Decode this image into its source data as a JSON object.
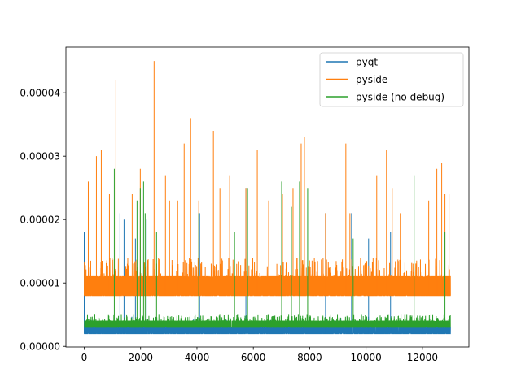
{
  "chart_data": {
    "type": "line",
    "title": "",
    "xlabel": "",
    "ylabel": "",
    "xlim": [
      -650,
      13650
    ],
    "ylim": [
      -1e-07,
      4.72e-05
    ],
    "grid": false,
    "legend_placement": "top-right",
    "xticks": {
      "values": [
        0,
        2000,
        4000,
        6000,
        8000,
        10000,
        12000
      ],
      "labels": [
        "0",
        "2000",
        "4000",
        "6000",
        "8000",
        "10000",
        "12000"
      ]
    },
    "yticks": {
      "values": [
        0,
        1e-05,
        2e-05,
        3e-05,
        4e-05
      ],
      "labels": [
        "0.00000",
        "0.00001",
        "0.00002",
        "0.00003",
        "0.00004"
      ]
    },
    "n_points": 13000,
    "series": [
      {
        "name": "pyqt",
        "color": "#1f77b4",
        "baseline": [
          2e-06,
          3e-06
        ],
        "minor_spike": 4.8e-06,
        "minor_rate": 0.01,
        "spikes": [
          [
            0,
            1.8e-05
          ],
          [
            1268,
            2.1e-05
          ],
          [
            1413,
            2e-05
          ],
          [
            1816,
            1.7e-05
          ],
          [
            2220,
            2e-05
          ],
          [
            4094,
            2.1e-05
          ],
          [
            5737,
            2.5e-05
          ],
          [
            8563,
            2.1e-05
          ],
          [
            9486,
            2.1e-05
          ],
          [
            10090,
            1.7e-05
          ],
          [
            10869,
            1.8e-05
          ]
        ]
      },
      {
        "name": "pyside",
        "color": "#ff7f0e",
        "baseline": [
          8e-06,
          1.1e-05
        ],
        "minor_spike": 1.4e-05,
        "minor_rate": 0.08,
        "spikes": [
          [
            144,
            2.6e-05
          ],
          [
            202,
            2.4e-05
          ],
          [
            432,
            3e-05
          ],
          [
            605,
            3.1e-05
          ],
          [
            894,
            2.4e-05
          ],
          [
            1124,
            4.2e-05
          ],
          [
            1701,
            2.4e-05
          ],
          [
            1989,
            2.8e-05
          ],
          [
            2479,
            4.5e-05
          ],
          [
            2883,
            2.7e-05
          ],
          [
            3027,
            2.3e-05
          ],
          [
            3315,
            2.3e-05
          ],
          [
            3546,
            3.2e-05
          ],
          [
            3777,
            3.6e-05
          ],
          [
            4065,
            2.3e-05
          ],
          [
            4584,
            3.4e-05
          ],
          [
            4815,
            2.5e-05
          ],
          [
            5161,
            2.7e-05
          ],
          [
            5737,
            2.5e-05
          ],
          [
            6141,
            3.1e-05
          ],
          [
            6545,
            2.3e-05
          ],
          [
            7034,
            2.4e-05
          ],
          [
            7409,
            2.5e-05
          ],
          [
            7698,
            3.2e-05
          ],
          [
            7813,
            3.3e-05
          ],
          [
            8563,
            2.1e-05
          ],
          [
            9283,
            3.2e-05
          ],
          [
            9428,
            2.1e-05
          ],
          [
            10379,
            2.7e-05
          ],
          [
            10725,
            3.1e-05
          ],
          [
            10927,
            2.5e-05
          ],
          [
            11215,
            2.1e-05
          ],
          [
            12224,
            2.3e-05
          ],
          [
            12512,
            2.8e-05
          ],
          [
            12685,
            2.9e-05
          ],
          [
            12800,
            2.4e-05
          ],
          [
            12945,
            2.4e-05
          ]
        ]
      },
      {
        "name": "pyside (no debug)",
        "color": "#2ca02c",
        "baseline": [
          3e-06,
          4e-06
        ],
        "minor_spike": 5e-06,
        "minor_rate": 0.12,
        "spikes": [
          [
            29,
            1.8e-05
          ],
          [
            1067,
            2.8e-05
          ],
          [
            1874,
            2.3e-05
          ],
          [
            1989,
            2.5e-05
          ],
          [
            2105,
            2.6e-05
          ],
          [
            2162,
            2.1e-05
          ],
          [
            2566,
            1.8e-05
          ],
          [
            4065,
            2.1e-05
          ],
          [
            5334,
            1.8e-05
          ],
          [
            5795,
            2.5e-05
          ],
          [
            7006,
            2.6e-05
          ],
          [
            7352,
            2.2e-05
          ],
          [
            7640,
            2.6e-05
          ],
          [
            7928,
            2.5e-05
          ],
          [
            9543,
            1.7e-05
          ],
          [
            11705,
            2.7e-05
          ],
          [
            12800,
            1.8e-05
          ]
        ]
      }
    ]
  }
}
